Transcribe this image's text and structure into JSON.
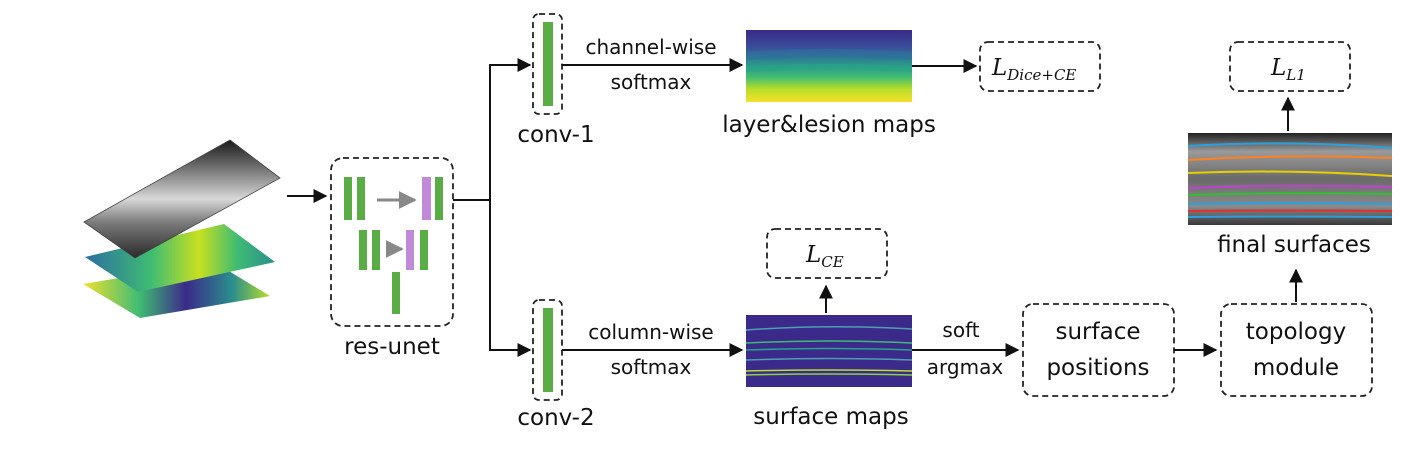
{
  "nodes": {
    "res_unet": "res-unet",
    "conv1": "conv-1",
    "conv2": "conv-2",
    "layer_lesion_maps": "layer&lesion maps",
    "surface_maps": "surface maps",
    "final_surfaces": "final surfaces",
    "surface_positions_line1": "surface",
    "surface_positions_line2": "positions",
    "topology_module_line1": "topology",
    "topology_module_line2": "module"
  },
  "edges": {
    "channel_wise_line1": "channel-wise",
    "channel_wise_line2": "softmax",
    "column_wise_line1": "column-wise",
    "column_wise_line2": "softmax",
    "soft_argmax_line1": "soft",
    "soft_argmax_line2": "argmax"
  },
  "losses": {
    "dice_ce": {
      "base": "L",
      "sub": "Dice+CE"
    },
    "ce": {
      "base": "L",
      "sub": "CE"
    },
    "l1": {
      "base": "L",
      "sub": "L1"
    }
  },
  "colors": {
    "block_green": "#5aac44",
    "block_purple": "#c08ad8",
    "skip_arrow": "#888888",
    "map_dark": "#3b2a8a"
  }
}
